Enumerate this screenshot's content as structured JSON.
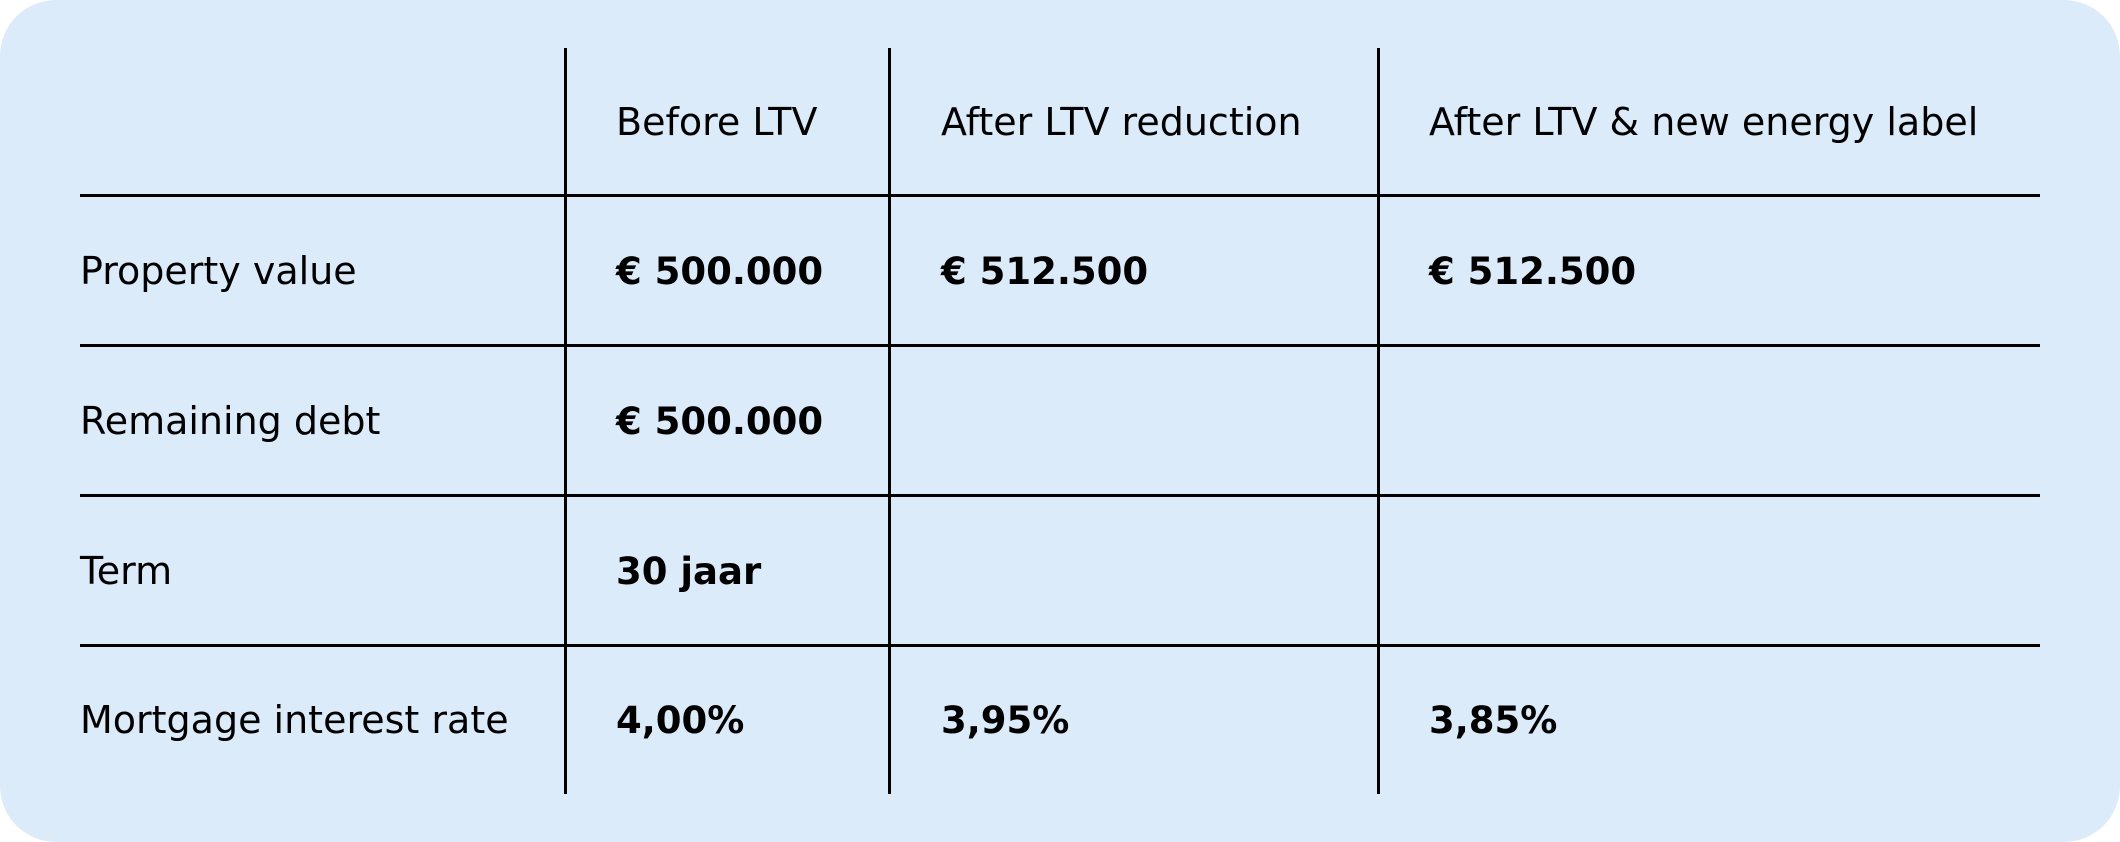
{
  "table": {
    "headers": [
      "",
      "Before LTV",
      "After LTV reduction",
      "After LTV & new energy label"
    ],
    "rows": [
      {
        "label": "Property value",
        "before": "€ 500.000",
        "after_ltv": "€ 512.500",
        "after_energy": "€ 512.500"
      },
      {
        "label": "Remaining debt",
        "before": "€ 500.000",
        "after_ltv": "",
        "after_energy": ""
      },
      {
        "label": "Term",
        "before": "30 jaar",
        "after_ltv": "",
        "after_energy": ""
      },
      {
        "label": "Mortgage interest rate",
        "before": "4,00%",
        "after_ltv": "3,95%",
        "after_energy": "3,85%"
      }
    ]
  },
  "colors": {
    "background": "#dcebfa",
    "lines": "#000000",
    "text": "#000000"
  }
}
